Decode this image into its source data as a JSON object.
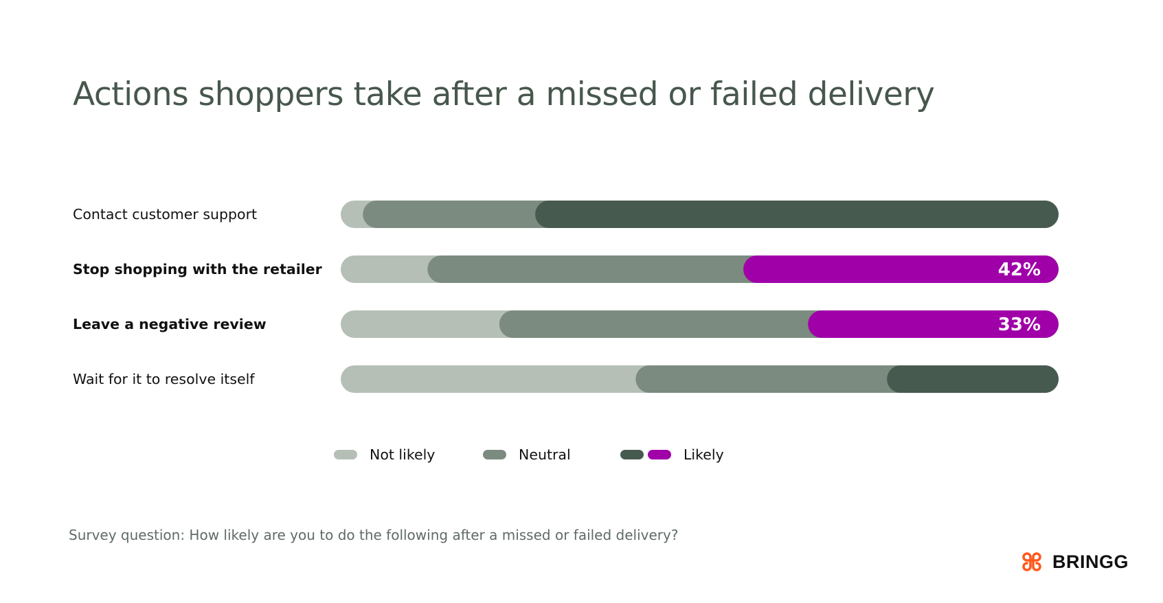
{
  "chart_data": {
    "type": "bar",
    "orientation": "horizontal",
    "stacked": true,
    "title": "Actions shoppers take after a missed or failed delivery",
    "categories": [
      "Contact customer support",
      "Stop shopping with the retailer",
      "Leave a negative review",
      "Wait for it to resolve itself"
    ],
    "highlighted_categories": [
      1,
      2
    ],
    "series": [
      {
        "name": "Not likely",
        "values": [
          5,
          14,
          24,
          43
        ],
        "color": "#b5bfb6"
      },
      {
        "name": "Neutral",
        "values": [
          24,
          44,
          43,
          35
        ],
        "color": "#7b8b7f"
      },
      {
        "name": "Likely",
        "values": [
          71,
          42,
          33,
          22
        ],
        "color": "#475a50",
        "highlight_color": "#a000a8"
      }
    ],
    "data_labels": [
      "",
      "42%",
      "33%",
      ""
    ],
    "xlim": [
      0,
      100
    ],
    "grid": false,
    "legend_position": "bottom"
  },
  "legend": {
    "not_likely": "Not likely",
    "neutral": "Neutral",
    "likely": "Likely"
  },
  "footnote": "Survey question: How likely are you to do the following after a missed or failed delivery?",
  "logo": {
    "text": "BRINGG",
    "color": "#ff5a1f"
  }
}
